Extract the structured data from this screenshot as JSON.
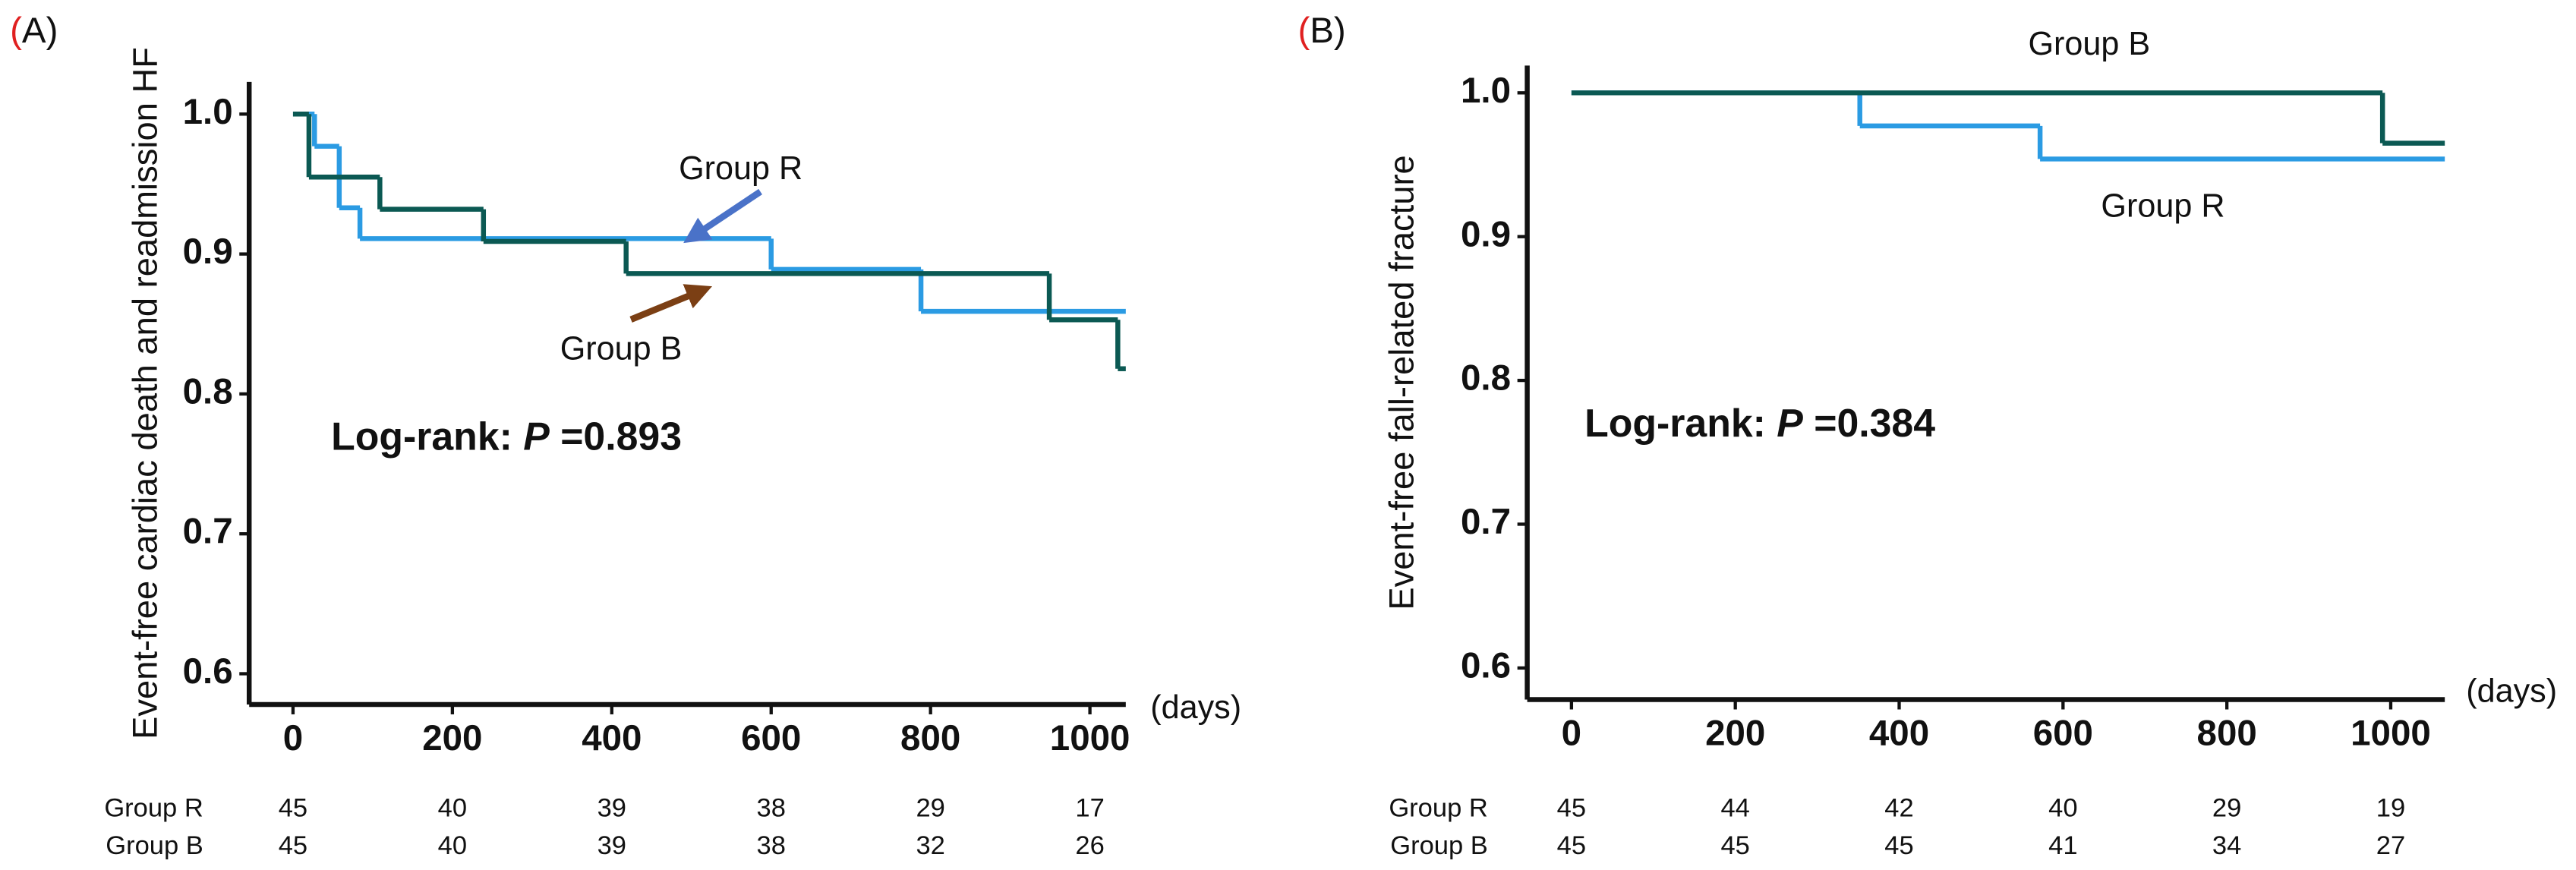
{
  "charts": [
    {
      "chart_data": {
        "type": "step",
        "panel_label": [
          "(",
          "A)"
        ],
        "y_label": "Event-free cardiac death and readmission HF",
        "x_label": "(days)",
        "xlim": [
          -55,
          1045
        ],
        "ylim": [
          0.578,
          1.023
        ],
        "xticks": [
          0,
          200,
          400,
          600,
          800,
          1000
        ],
        "yticks": [
          0.6,
          0.7,
          0.8,
          0.9,
          {
            "value": 1,
            "label": "1.0"
          }
        ],
        "series": [
          {
            "name": "Group R",
            "color": "#2b9be3",
            "x": [
              0,
              27,
              58,
              84,
              600,
              788,
              1045
            ],
            "values": [
              1,
              0.977,
              0.933,
              0.911,
              0.889,
              0.859,
              0.859
            ]
          },
          {
            "name": "Group B",
            "color": "#0b5953",
            "x": [
              0,
              20,
              109,
              239,
              418,
              949,
              1035,
              1045
            ],
            "values": [
              1,
              0.955,
              0.932,
              0.909,
              0.886,
              0.853,
              0.818,
              0.818
            ]
          }
        ],
        "log_rank": [
          "Log-rank: ",
          "P",
          " =0.893"
        ],
        "risk_table": [
          {
            "name": "Group R",
            "values": [
              45,
              40,
              39,
              38,
              29,
              17
            ]
          },
          {
            "name": "Group B",
            "values": [
              45,
              40,
              39,
              38,
              32,
              26
            ]
          }
        ]
      }
    },
    {
      "chart_data": {
        "type": "step",
        "panel_label": [
          "(",
          "B)"
        ],
        "y_label": "Event-free fall-related fracture",
        "x_label": "(days)",
        "xlim": [
          -54,
          1066
        ],
        "ylim": [
          0.578,
          1.019
        ],
        "xticks": [
          0,
          200,
          400,
          600,
          800,
          1000
        ],
        "yticks": [
          0.6,
          0.7,
          0.8,
          0.9,
          {
            "value": 1,
            "label": "1.0"
          }
        ],
        "series": [
          {
            "name": "Group R",
            "color": "#2b9be3",
            "x": [
              0,
              352,
              572,
              1066
            ],
            "values": [
              1,
              0.977,
              0.954,
              0.954
            ]
          },
          {
            "name": "Group B",
            "color": "#0b5953",
            "x": [
              0,
              990,
              1066
            ],
            "values": [
              1,
              0.965,
              0.965
            ]
          }
        ],
        "log_rank": [
          "Log-rank: ",
          "P",
          " =0.384"
        ],
        "risk_table": [
          {
            "name": "Group R",
            "values": [
              45,
              44,
              42,
              40,
              29,
              19
            ]
          },
          {
            "name": "Group B",
            "values": [
              45,
              45,
              45,
              41,
              34,
              27
            ]
          }
        ]
      }
    }
  ]
}
